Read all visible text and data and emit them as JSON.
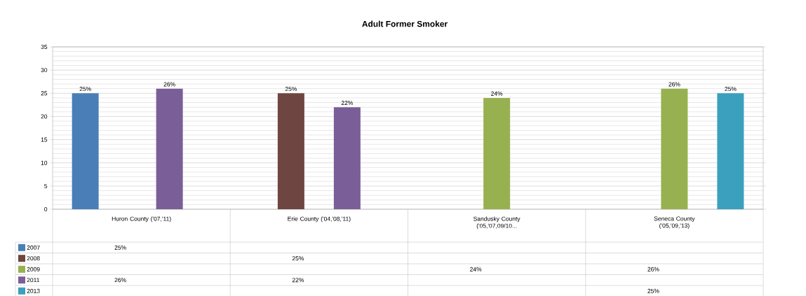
{
  "chart_data": {
    "type": "bar",
    "title": "Adult Former Smoker",
    "categories": [
      "Huron County ('07,'11)",
      "Erie County ('04,'08,'11)",
      "Sandusky County ('05,'07,09/10...",
      "Seneca County ('05,'09,'13)"
    ],
    "series": [
      {
        "name": "2007",
        "color": "#4a7eb7",
        "values": [
          25,
          null,
          null,
          null
        ],
        "value_labels": [
          "25%",
          null,
          null,
          null
        ]
      },
      {
        "name": "2008",
        "color": "#6e4540",
        "values": [
          null,
          25,
          null,
          null
        ],
        "value_labels": [
          null,
          "25%",
          null,
          null
        ]
      },
      {
        "name": "2009",
        "color": "#98b150",
        "values": [
          null,
          null,
          24,
          26
        ],
        "value_labels": [
          null,
          null,
          "24%",
          "26%"
        ]
      },
      {
        "name": "2011",
        "color": "#7a5e98",
        "values": [
          26,
          22,
          null,
          null
        ],
        "value_labels": [
          "26%",
          "22%",
          null,
          null
        ]
      },
      {
        "name": "2013",
        "color": "#3aa0bd",
        "values": [
          null,
          null,
          null,
          25
        ],
        "value_labels": [
          null,
          null,
          null,
          "25%"
        ]
      }
    ],
    "ylim": [
      0,
      35
    ],
    "yticks": [
      0,
      5,
      10,
      15,
      20,
      25,
      30,
      35
    ],
    "grid": "y",
    "legend": "bottom left"
  }
}
